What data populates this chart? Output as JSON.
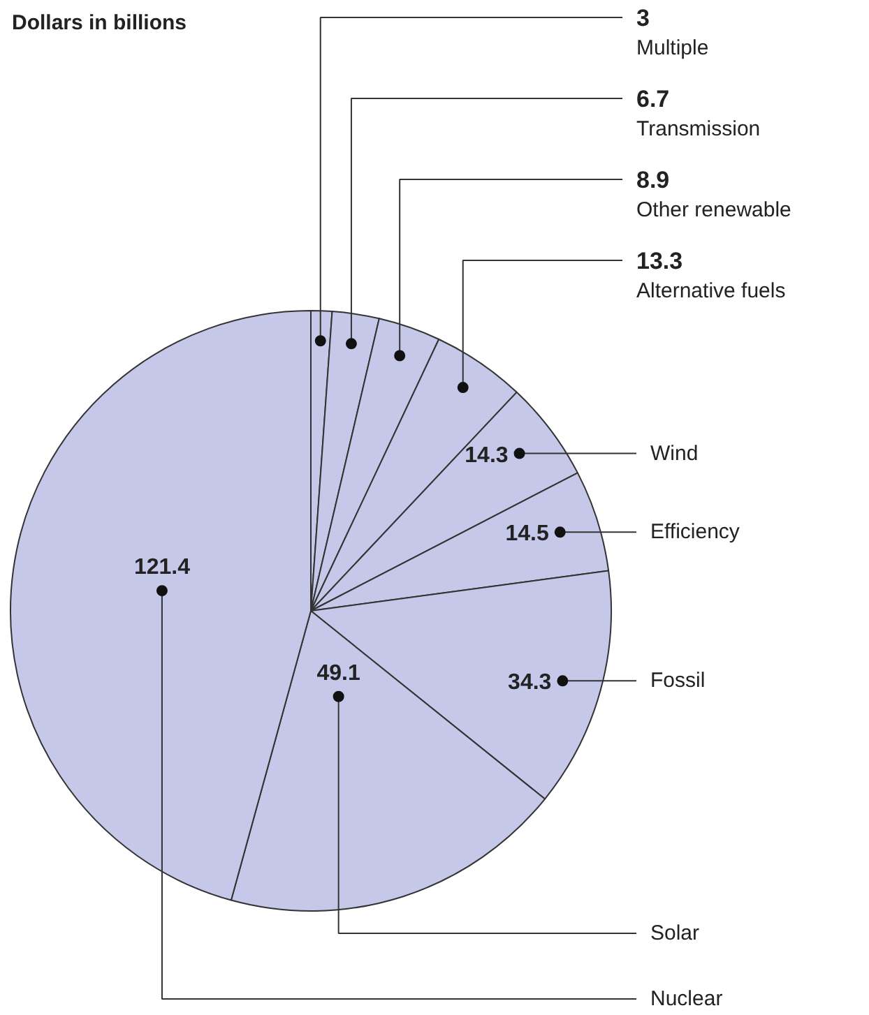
{
  "chart_data": {
    "type": "pie",
    "title": "Dollars in billions",
    "categories": [
      "Multiple",
      "Transmission",
      "Other renewable",
      "Alternative fuels",
      "Wind",
      "Efficiency",
      "Fossil",
      "Solar",
      "Nuclear"
    ],
    "values": [
      3,
      6.7,
      8.9,
      13.3,
      14.3,
      14.5,
      34.3,
      49.1,
      121.4
    ],
    "colors": [
      "#c5c8e8",
      "#c5c8e8",
      "#c5c8e8",
      "#c5c8e8",
      "#c5c8e8",
      "#c5c8e8",
      "#c5c8e8",
      "#c5c8e8",
      "#c5c8e8"
    ],
    "data_labels": true
  }
}
